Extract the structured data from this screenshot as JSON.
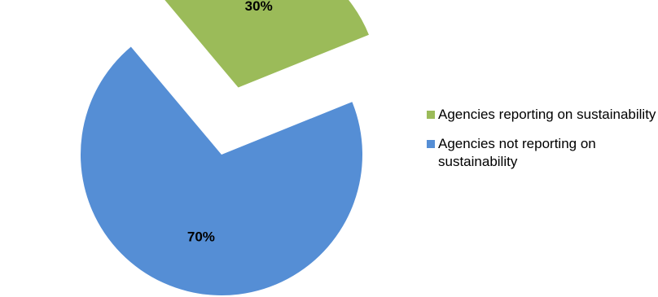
{
  "chart_data": {
    "type": "pie",
    "title": "",
    "slices": [
      {
        "label": "Agencies reporting on sustainability",
        "value": 30,
        "data_label": "30%",
        "color": "#9BBB59",
        "exploded": true
      },
      {
        "label": "Agencies not reporting on sustainability",
        "value": 70,
        "data_label": "70%",
        "color": "#558ED5",
        "exploded": false
      }
    ],
    "legend_position": "right"
  }
}
